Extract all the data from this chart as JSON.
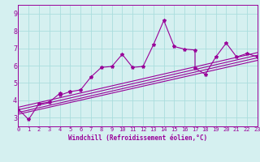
{
  "xlabel": "Windchill (Refroidissement éolien,°C)",
  "bg_color": "#d5f0f0",
  "line_color": "#990099",
  "grid_color": "#aadddd",
  "xlim": [
    0,
    23
  ],
  "ylim": [
    2.5,
    9.5
  ],
  "xticks": [
    0,
    1,
    2,
    3,
    4,
    5,
    6,
    7,
    8,
    9,
    10,
    11,
    12,
    13,
    14,
    15,
    16,
    17,
    18,
    19,
    20,
    21,
    22,
    23
  ],
  "yticks": [
    3,
    4,
    5,
    6,
    7,
    8,
    9
  ],
  "series": [
    [
      0,
      3.5
    ],
    [
      1,
      2.9
    ],
    [
      2,
      3.8
    ],
    [
      3,
      3.9
    ],
    [
      4,
      4.4
    ],
    [
      4,
      4.3
    ],
    [
      5,
      4.5
    ],
    [
      5,
      4.5
    ],
    [
      6,
      4.6
    ],
    [
      7,
      5.35
    ],
    [
      8,
      5.9
    ],
    [
      9,
      5.95
    ],
    [
      10,
      6.65
    ],
    [
      11,
      5.9
    ],
    [
      12,
      5.95
    ],
    [
      13,
      7.2
    ],
    [
      14,
      8.6
    ],
    [
      15,
      7.1
    ],
    [
      16,
      6.95
    ],
    [
      17,
      6.9
    ],
    [
      17,
      5.85
    ],
    [
      18,
      5.5
    ],
    [
      19,
      6.5
    ],
    [
      20,
      7.3
    ],
    [
      21,
      6.5
    ],
    [
      22,
      6.7
    ],
    [
      23,
      6.5
    ]
  ],
  "regression_lines": [
    {
      "x": [
        0,
        23
      ],
      "y": [
        3.2,
        6.3
      ]
    },
    {
      "x": [
        0,
        23
      ],
      "y": [
        3.3,
        6.45
      ]
    },
    {
      "x": [
        0,
        23
      ],
      "y": [
        3.45,
        6.6
      ]
    },
    {
      "x": [
        0,
        23
      ],
      "y": [
        3.6,
        6.75
      ]
    }
  ],
  "xlabel_fontsize": 5.5,
  "tick_fontsize_x": 5.0,
  "tick_fontsize_y": 6.0
}
